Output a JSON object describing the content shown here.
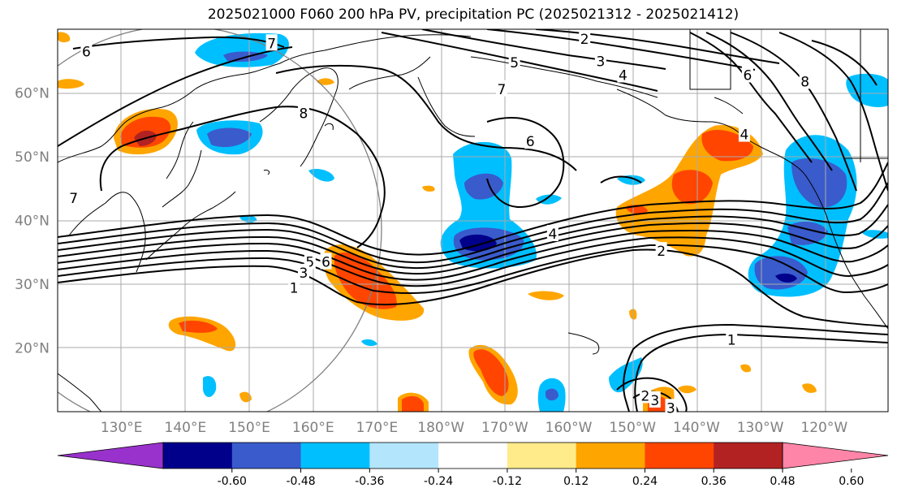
{
  "title": "2025021000 F060 200 hPa PV, precipitation PC (2025021312 - 2025021412)",
  "lat_labels": [
    {
      "text": "60°N",
      "lat": 60
    },
    {
      "text": "50°N",
      "lat": 50
    },
    {
      "text": "40°N",
      "lat": 40
    },
    {
      "text": "30°N",
      "lat": 30
    },
    {
      "text": "20°N",
      "lat": 20
    }
  ],
  "lon_labels": [
    {
      "text": "130°E",
      "lon": 130
    },
    {
      "text": "140°E",
      "lon": 140
    },
    {
      "text": "150°E",
      "lon": 150
    },
    {
      "text": "160°E",
      "lon": 160
    },
    {
      "text": "170°E",
      "lon": 170
    },
    {
      "text": "180°W",
      "lon": 180
    },
    {
      "text": "170°W",
      "lon": 190
    },
    {
      "text": "160°W",
      "lon": 200
    },
    {
      "text": "150°W",
      "lon": 210
    },
    {
      "text": "140°W",
      "lon": 220
    },
    {
      "text": "130°W",
      "lon": 230
    },
    {
      "text": "120°W",
      "lon": 240
    }
  ],
  "colorbar": {
    "colors": [
      "#9932CC",
      "#00008B",
      "#3A5BCC",
      "#00BFFF",
      "#B3E5FC",
      "#FFFFFF",
      "#FFEB8A",
      "#FFA500",
      "#FF4500",
      "#B22222",
      "#FF85A8"
    ],
    "tick_labels": [
      "-0.60",
      "-0.48",
      "-0.36",
      "-0.24",
      "-0.12",
      "0.12",
      "0.24",
      "0.36",
      "0.48",
      "0.60"
    ]
  },
  "contour_labels": [
    {
      "text": "6",
      "lon": 124.5,
      "lat": 66.5
    },
    {
      "text": "7",
      "lon": 153.5,
      "lat": 67.8
    },
    {
      "text": "8",
      "lon": 158.5,
      "lat": 56.8
    },
    {
      "text": "7",
      "lon": 122.5,
      "lat": 43.5
    },
    {
      "text": "5",
      "lon": 159.5,
      "lat": 33.5
    },
    {
      "text": "6",
      "lon": 162.0,
      "lat": 33.5
    },
    {
      "text": "3",
      "lon": 158.5,
      "lat": 31.8
    },
    {
      "text": "1",
      "lon": 157.0,
      "lat": 29.4
    },
    {
      "text": "2",
      "lon": 202.5,
      "lat": 68.5
    },
    {
      "text": "5",
      "lon": 191.5,
      "lat": 64.8
    },
    {
      "text": "3",
      "lon": 205.0,
      "lat": 65.0
    },
    {
      "text": "4",
      "lon": 208.5,
      "lat": 62.8
    },
    {
      "text": "7",
      "lon": 189.5,
      "lat": 60.6
    },
    {
      "text": "6",
      "lon": 194.0,
      "lat": 52.4
    },
    {
      "text": "6",
      "lon": 228.0,
      "lat": 62.8
    },
    {
      "text": "8",
      "lon": 237.0,
      "lat": 61.8
    },
    {
      "text": "4",
      "lon": 227.5,
      "lat": 53.5
    },
    {
      "text": "4",
      "lon": 197.5,
      "lat": 37.9
    },
    {
      "text": "2",
      "lon": 214.5,
      "lat": 35.2
    },
    {
      "text": "1",
      "lon": 225.5,
      "lat": 21.3
    },
    {
      "text": "2",
      "lon": 212.0,
      "lat": 12.5
    },
    {
      "text": "3",
      "lon": 213.5,
      "lat": 11.8
    },
    {
      "text": "3",
      "lon": 216.0,
      "lat": 10.6
    }
  ]
}
